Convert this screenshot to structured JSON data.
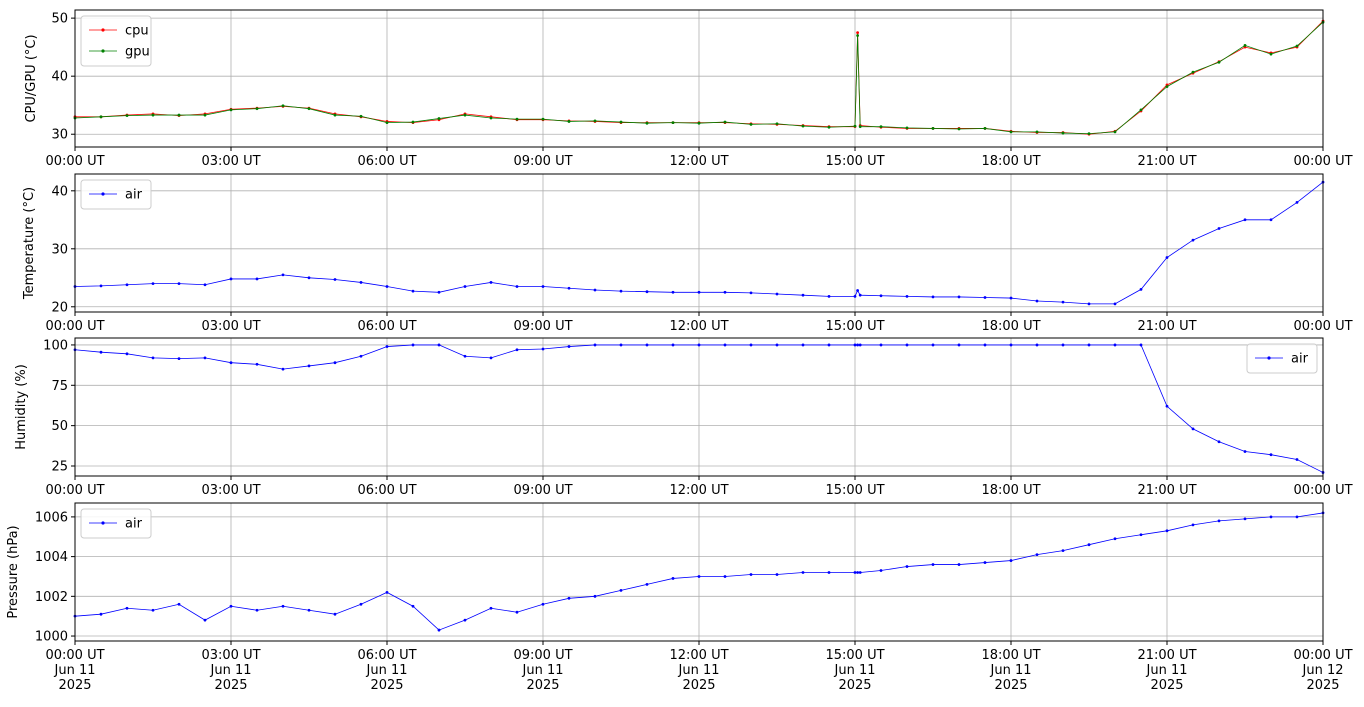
{
  "chart_data": [
    {
      "type": "line",
      "ylabel": "CPU/GPU (°C)",
      "x": [
        0,
        0.5,
        1,
        1.5,
        2,
        2.5,
        3,
        3.5,
        4,
        4.5,
        5,
        5.5,
        6,
        6.5,
        7,
        7.5,
        8,
        8.5,
        9,
        9.5,
        10,
        10.5,
        11,
        11.5,
        12,
        12.5,
        13,
        13.5,
        14,
        14.5,
        15,
        15.05,
        15.1,
        15.5,
        16,
        16.5,
        17,
        17.5,
        18,
        18.5,
        19,
        19.5,
        20,
        20.5,
        21,
        21.5,
        22,
        22.5,
        23,
        23.5,
        24
      ],
      "series": [
        {
          "name": "cpu",
          "color": "#ff0000",
          "values": [
            33,
            33,
            33.3,
            33.5,
            33.2,
            33.5,
            34.3,
            34.5,
            34.8,
            34.5,
            33.5,
            33,
            32.2,
            32,
            32.5,
            33.5,
            33,
            32.5,
            32.5,
            32.3,
            32.2,
            32,
            32,
            32,
            32,
            32,
            31.8,
            31.7,
            31.5,
            31.3,
            31.3,
            47.5,
            31.5,
            31.2,
            31,
            31,
            31,
            31,
            30.5,
            30.3,
            30.3,
            30,
            30.5,
            34,
            38.5,
            40.5,
            42.5,
            45,
            44,
            45,
            49.5
          ]
        },
        {
          "name": "gpu",
          "color": "#008000",
          "values": [
            32.8,
            33,
            33.2,
            33.3,
            33.3,
            33.3,
            34.2,
            34.4,
            34.9,
            34.4,
            33.3,
            33.1,
            32,
            32.1,
            32.7,
            33.3,
            32.8,
            32.6,
            32.6,
            32.2,
            32.3,
            32.1,
            31.9,
            32,
            31.9,
            32.1,
            31.7,
            31.8,
            31.4,
            31.2,
            31.4,
            47,
            31.3,
            31.3,
            31.1,
            31,
            30.9,
            31,
            30.4,
            30.4,
            30.2,
            30.1,
            30.4,
            34.2,
            38.2,
            40.7,
            42.4,
            45.3,
            43.8,
            45.2,
            49.3
          ]
        }
      ],
      "xlim": [
        0,
        24
      ],
      "ylim": [
        27.8,
        51.4
      ],
      "yticks": [
        30,
        40,
        50
      ],
      "xticks": [
        {
          "value": 0,
          "label": "00:00 UT"
        },
        {
          "value": 3,
          "label": "03:00 UT"
        },
        {
          "value": 6,
          "label": "06:00 UT"
        },
        {
          "value": 9,
          "label": "09:00 UT"
        },
        {
          "value": 12,
          "label": "12:00 UT"
        },
        {
          "value": 15,
          "label": "15:00 UT"
        },
        {
          "value": 18,
          "label": "18:00 UT"
        },
        {
          "value": 21,
          "label": "21:00 UT"
        },
        {
          "value": 24,
          "label": "00:00 UT"
        }
      ],
      "grid": true,
      "legend": "upper-left"
    },
    {
      "type": "line",
      "ylabel": "Temperature (°C)",
      "x": [
        0,
        0.5,
        1,
        1.5,
        2,
        2.5,
        3,
        3.5,
        4,
        4.5,
        5,
        5.5,
        6,
        6.5,
        7,
        7.5,
        8,
        8.5,
        9,
        9.5,
        10,
        10.5,
        11,
        11.5,
        12,
        12.5,
        13,
        13.5,
        14,
        14.5,
        15,
        15.05,
        15.1,
        15.5,
        16,
        16.5,
        17,
        17.5,
        18,
        18.5,
        19,
        19.5,
        20,
        20.5,
        21,
        21.5,
        22,
        22.5,
        23,
        23.5,
        24
      ],
      "series": [
        {
          "name": "air",
          "color": "#0000ff",
          "values": [
            23.5,
            23.6,
            23.8,
            24,
            24,
            23.8,
            24.8,
            24.8,
            25.5,
            25,
            24.7,
            24.2,
            23.5,
            22.7,
            22.5,
            23.5,
            24.2,
            23.5,
            23.5,
            23.2,
            22.9,
            22.7,
            22.6,
            22.5,
            22.5,
            22.5,
            22.4,
            22.2,
            22,
            21.8,
            21.8,
            22.8,
            22,
            21.9,
            21.8,
            21.7,
            21.7,
            21.6,
            21.5,
            21,
            20.8,
            20.5,
            20.5,
            23,
            28.5,
            31.5,
            33.5,
            35,
            35,
            38,
            41.5
          ]
        }
      ],
      "xlim": [
        0,
        24
      ],
      "ylim": [
        19.1,
        42.9
      ],
      "yticks": [
        20,
        30,
        40
      ],
      "xticks": [
        {
          "value": 0,
          "label": "00:00 UT"
        },
        {
          "value": 3,
          "label": "03:00 UT"
        },
        {
          "value": 6,
          "label": "06:00 UT"
        },
        {
          "value": 9,
          "label": "09:00 UT"
        },
        {
          "value": 12,
          "label": "12:00 UT"
        },
        {
          "value": 15,
          "label": "15:00 UT"
        },
        {
          "value": 18,
          "label": "18:00 UT"
        },
        {
          "value": 21,
          "label": "21:00 UT"
        },
        {
          "value": 24,
          "label": "00:00 UT"
        }
      ],
      "grid": true,
      "legend": "upper-left"
    },
    {
      "type": "line",
      "ylabel": "Humidity (%)",
      "x": [
        0,
        0.5,
        1,
        1.5,
        2,
        2.5,
        3,
        3.5,
        4,
        4.5,
        5,
        5.5,
        6,
        6.5,
        7,
        7.5,
        8,
        8.5,
        9,
        9.5,
        10,
        10.5,
        11,
        11.5,
        12,
        12.5,
        13,
        13.5,
        14,
        14.5,
        15,
        15.05,
        15.1,
        15.5,
        16,
        16.5,
        17,
        17.5,
        18,
        18.5,
        19,
        19.5,
        20,
        20.5,
        21,
        21.5,
        22,
        22.5,
        23,
        23.5,
        24
      ],
      "series": [
        {
          "name": "air",
          "color": "#0000ff",
          "values": [
            97,
            95.5,
            94.5,
            92,
            91.5,
            92,
            89,
            88,
            85,
            87,
            89,
            93,
            99,
            100,
            100,
            93,
            92,
            97,
            97.5,
            99,
            100,
            100,
            100,
            100,
            100,
            100,
            100,
            100,
            100,
            100,
            100,
            100,
            100,
            100,
            100,
            100,
            100,
            100,
            100,
            100,
            100,
            100,
            100,
            100,
            62,
            48,
            40,
            34,
            32,
            29,
            21
          ]
        }
      ],
      "xlim": [
        0,
        24
      ],
      "ylim": [
        18.8,
        104.3
      ],
      "yticks": [
        25,
        50,
        75,
        100
      ],
      "xticks": [
        {
          "value": 0,
          "label": "00:00 UT"
        },
        {
          "value": 3,
          "label": "03:00 UT"
        },
        {
          "value": 6,
          "label": "06:00 UT"
        },
        {
          "value": 9,
          "label": "09:00 UT"
        },
        {
          "value": 12,
          "label": "12:00 UT"
        },
        {
          "value": 15,
          "label": "15:00 UT"
        },
        {
          "value": 18,
          "label": "18:00 UT"
        },
        {
          "value": 21,
          "label": "21:00 UT"
        },
        {
          "value": 24,
          "label": "00:00 UT"
        }
      ],
      "grid": true,
      "legend": "upper-right"
    },
    {
      "type": "line",
      "ylabel": "Pressure (hPa)",
      "x": [
        0,
        0.5,
        1,
        1.5,
        2,
        2.5,
        3,
        3.5,
        4,
        4.5,
        5,
        5.5,
        6,
        6.5,
        7,
        7.5,
        8,
        8.5,
        9,
        9.5,
        10,
        10.5,
        11,
        11.5,
        12,
        12.5,
        13,
        13.5,
        14,
        14.5,
        15,
        15.05,
        15.1,
        15.5,
        16,
        16.5,
        17,
        17.5,
        18,
        18.5,
        19,
        19.5,
        20,
        20.5,
        21,
        21.5,
        22,
        22.5,
        23,
        23.5,
        24
      ],
      "series": [
        {
          "name": "air",
          "color": "#0000ff",
          "values": [
            1001,
            1001.1,
            1001.4,
            1001.3,
            1001.6,
            1000.8,
            1001.5,
            1001.3,
            1001.5,
            1001.3,
            1001.1,
            1001.6,
            1002.2,
            1001.5,
            1000.3,
            1000.8,
            1001.4,
            1001.2,
            1001.6,
            1001.9,
            1002,
            1002.3,
            1002.6,
            1002.9,
            1003,
            1003,
            1003.1,
            1003.1,
            1003.2,
            1003.2,
            1003.2,
            1003.2,
            1003.2,
            1003.3,
            1003.5,
            1003.6,
            1003.6,
            1003.7,
            1003.8,
            1004.1,
            1004.3,
            1004.6,
            1004.9,
            1005.1,
            1005.3,
            1005.6,
            1005.8,
            1005.9,
            1006,
            1006,
            1006.2
          ]
        }
      ],
      "xlim": [
        0,
        24
      ],
      "ylim": [
        999.75,
        1006.7
      ],
      "yticks": [
        1000,
        1002,
        1004,
        1006
      ],
      "xticks": [
        {
          "value": 0,
          "label": "00:00 UT\nJun 11\n2025"
        },
        {
          "value": 3,
          "label": "03:00 UT\nJun 11\n2025"
        },
        {
          "value": 6,
          "label": "06:00 UT\nJun 11\n2025"
        },
        {
          "value": 9,
          "label": "09:00 UT\nJun 11\n2025"
        },
        {
          "value": 12,
          "label": "12:00 UT\nJun 11\n2025"
        },
        {
          "value": 15,
          "label": "15:00 UT\nJun 11\n2025"
        },
        {
          "value": 18,
          "label": "18:00 UT\nJun 11\n2025"
        },
        {
          "value": 21,
          "label": "21:00 UT\nJun 11\n2025"
        },
        {
          "value": 24,
          "label": "00:00 UT\nJun 12\n2025"
        }
      ],
      "grid": true,
      "legend": "upper-left"
    }
  ]
}
